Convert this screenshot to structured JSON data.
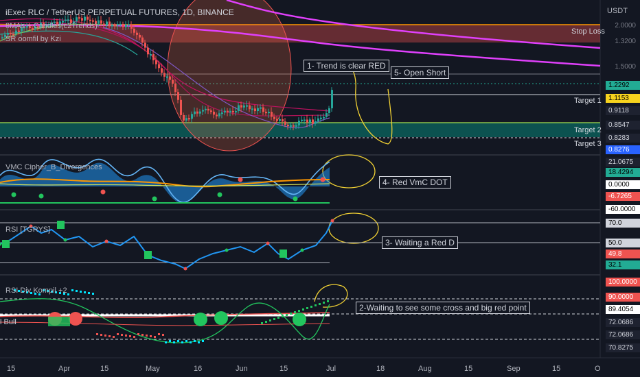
{
  "header": {
    "symbol": "iExec RLC / TetherUS PERPETUAL FUTURES, 1D, BINANCE",
    "indicators": [
      "8MAs + Candles(c2Trends)",
      "SR oomfil by Kzi"
    ]
  },
  "axis": {
    "unit": "USDT",
    "price_ticks": [
      "2.0000",
      "1.3200",
      "1.5000"
    ],
    "x_ticks": [
      "15",
      "Apr",
      "15",
      "May",
      "16",
      "Jun",
      "15",
      "Jul",
      "18",
      "Aug",
      "15",
      "Sep",
      "15",
      "O"
    ]
  },
  "levels": {
    "stop_loss": "Stop Loss",
    "target1": "Target 1",
    "target2": "Target 2",
    "target3": "Target 3"
  },
  "price_tags": [
    {
      "text": "1.2292",
      "bg": "#22ab94",
      "fg": "#000000"
    },
    {
      "text": "1.1153",
      "bg": "#f7d31e",
      "fg": "#000000"
    },
    {
      "text": "0.9118",
      "bg": "#1e2230",
      "fg": "#d1d4dc"
    },
    {
      "text": "0.8547",
      "bg": "#1e2230",
      "fg": "#d1d4dc"
    },
    {
      "text": "0.8283",
      "bg": "#1e2230",
      "fg": "#d1d4dc"
    },
    {
      "text": "0.8276",
      "bg": "#2962ff",
      "fg": "#ffffff"
    }
  ],
  "panes": {
    "vmc": {
      "title": "VMC Cipher_B_Divergences",
      "tags": [
        {
          "text": "21.0675",
          "bg": "#1e2230",
          "fg": "#d1d4dc"
        },
        {
          "text": "18.4294",
          "bg": "#22ab94",
          "fg": "#000000"
        },
        {
          "text": "0.0000",
          "bg": "#ffffff",
          "fg": "#000000"
        },
        {
          "text": "-6.7265",
          "bg": "#ef5350",
          "fg": "#ffffff"
        },
        {
          "text": "-60.0000",
          "bg": "#ffffff",
          "fg": "#000000"
        }
      ]
    },
    "rsi": {
      "title": "RSI [TGRYS]",
      "tags": [
        {
          "text": "70.0",
          "bg": "#d1d4dc",
          "fg": "#000000"
        },
        {
          "text": "50.0",
          "bg": "#d1d4dc",
          "fg": "#000000"
        },
        {
          "text": "49.8",
          "bg": "#ef5350",
          "fg": "#ffffff"
        },
        {
          "text": "32.1",
          "bg": "#22ab94",
          "fg": "#000000"
        }
      ]
    },
    "rsidiv": {
      "title": "RSI Div Kompil +2",
      "tags": [
        {
          "text": "100.0000",
          "bg": "#ef5350",
          "fg": "#ffffff"
        },
        {
          "text": "90.0000",
          "bg": "#ef5350",
          "fg": "#ffffff"
        },
        {
          "text": "89.4054",
          "bg": "#ffffff",
          "fg": "#000000"
        },
        {
          "text": "72.0686",
          "bg": "#1e2230",
          "fg": "#d1d4dc"
        },
        {
          "text": "72.0686",
          "bg": "#1e2230",
          "fg": "#d1d4dc"
        },
        {
          "text": "70.8275",
          "bg": "#1e2230",
          "fg": "#d1d4dc"
        }
      ],
      "bull_label": "l Bull"
    }
  },
  "annotations": {
    "a1": "1- Trend is clear RED",
    "a2": "2-Waiting to see some cross and big red point",
    "a3": "3- Waiting a Red D",
    "a4": "4- Red VmC DOT",
    "a5": "5- Open Short"
  },
  "colors": {
    "background": "#131722",
    "bull": "#26a69a",
    "bear": "#ef5350",
    "ma_magenta": "#e040fb",
    "stop_band": "#ff5252",
    "target_band": "#00bfa5",
    "wave": "#2196f3",
    "marker": "#f0d034"
  },
  "chart_data": [
    {
      "type": "line",
      "title": "iExec RLC / TetherUS PERPETUAL FUTURES, 1D, BINANCE",
      "xlabel": "",
      "ylabel": "USDT",
      "x": [
        "Mar 15",
        "Apr",
        "Apr 15",
        "May",
        "May 16",
        "Jun",
        "Jun 15",
        "Jul"
      ],
      "series": [
        {
          "values": [
            2.3,
            2.7,
            2.4,
            1.3,
            0.95,
            1.1,
            0.9,
            1.23
          ]
        }
      ],
      "price_levels": [
        1.2292,
        1.1153,
        0.9118,
        0.8547,
        0.8283,
        0.8276
      ],
      "level_labels": [
        "Stop Loss",
        "Target 1",
        "Target 2",
        "Target 3"
      ]
    },
    {
      "type": "area",
      "title": "VMC Cipher_B_Divergences",
      "x": [
        "Mar 15",
        "Apr",
        "Apr 15",
        "May",
        "May 16",
        "Jun",
        "Jun 15",
        "Jul"
      ],
      "series": [
        {
          "values": [
            10,
            35,
            5,
            -40,
            20,
            15,
            -45,
            21.07
          ]
        },
        {
          "values": [
            5,
            20,
            10,
            -20,
            10,
            8,
            -30,
            18.43
          ]
        }
      ],
      "levels": [
        21.0675,
        18.4294,
        0.0,
        -6.7265,
        -60.0
      ]
    },
    {
      "type": "line",
      "title": "RSI [TGRYS]",
      "x": [
        "Mar 15",
        "Apr",
        "Apr 15",
        "May",
        "May 16",
        "Jun",
        "Jun 15",
        "Jul"
      ],
      "series": [
        {
          "values": [
            40,
            72,
            50,
            30,
            42,
            48,
            35,
            75
          ]
        }
      ],
      "levels": [
        70.0,
        50.0,
        49.8,
        32.1
      ]
    },
    {
      "type": "line",
      "title": "RSI Div Kompil +2",
      "x": [
        "Mar 15",
        "Apr",
        "Apr 15",
        "May",
        "May 16",
        "Jun",
        "Jun 15",
        "Jul"
      ],
      "levels": [
        100.0,
        90.0,
        89.4054,
        72.0686,
        72.0686,
        70.8275
      ]
    }
  ]
}
